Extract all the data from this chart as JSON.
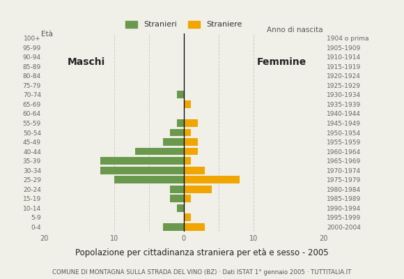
{
  "age_groups": [
    "100+",
    "95-99",
    "90-94",
    "85-89",
    "80-84",
    "75-79",
    "70-74",
    "65-69",
    "60-64",
    "55-59",
    "50-54",
    "45-49",
    "40-44",
    "35-39",
    "30-34",
    "25-29",
    "20-24",
    "15-19",
    "10-14",
    "5-9",
    "0-4"
  ],
  "birth_years": [
    "1904 o prima",
    "1905-1909",
    "1910-1914",
    "1915-1919",
    "1920-1924",
    "1925-1929",
    "1930-1934",
    "1935-1939",
    "1940-1944",
    "1945-1949",
    "1950-1954",
    "1955-1959",
    "1960-1964",
    "1965-1969",
    "1970-1974",
    "1975-1979",
    "1980-1984",
    "1985-1989",
    "1990-1994",
    "1995-1999",
    "2000-2004"
  ],
  "males": [
    0,
    0,
    0,
    0,
    0,
    0,
    1,
    0,
    0,
    1,
    2,
    3,
    7,
    12,
    12,
    10,
    2,
    2,
    1,
    0,
    3
  ],
  "females": [
    0,
    0,
    0,
    0,
    0,
    0,
    0,
    1,
    0,
    2,
    1,
    2,
    2,
    1,
    3,
    8,
    4,
    1,
    0,
    1,
    3
  ],
  "male_color": "#6a994e",
  "female_color": "#f0a500",
  "background_color": "#f0f0e8",
  "title": "Popolazione per cittadinanza straniera per età e sesso - 2005",
  "subtitle": "COMUNE DI MONTAGNA SULLA STRADA DEL VINO (BZ) · Dati ISTAT 1° gennaio 2005 · TUTTITALIA.IT",
  "legend_male": "Stranieri",
  "legend_female": "Straniere",
  "label_maschi": "Maschi",
  "label_femmine": "Femmine",
  "ylabel_left": "Età",
  "ylabel_right": "Anno di nascita",
  "xlim": 20,
  "grid_color": "#cccccc",
  "bar_height": 0.8
}
